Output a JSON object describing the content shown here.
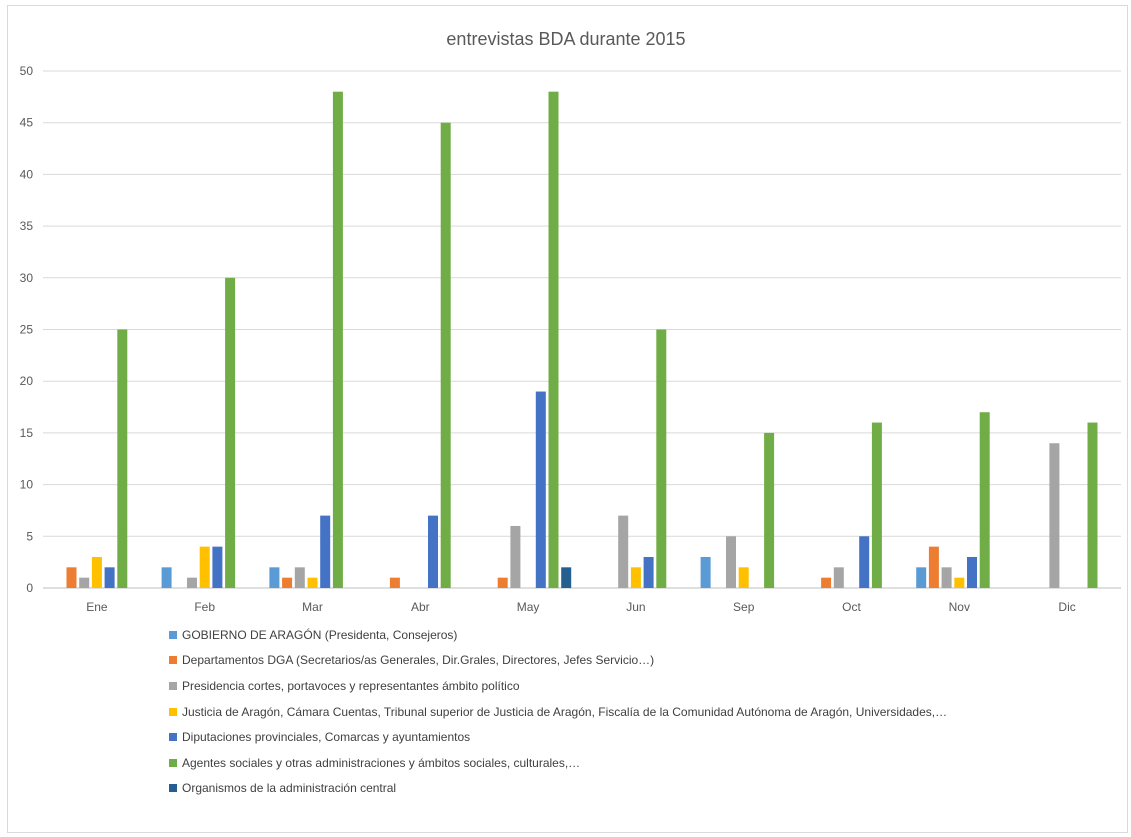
{
  "chart_data": {
    "type": "bar",
    "title": "entrevistas BDA durante 2015",
    "xlabel": "",
    "ylabel": "",
    "ylim": [
      0,
      50
    ],
    "yticks": [
      0,
      5,
      10,
      15,
      20,
      25,
      30,
      35,
      40,
      45,
      50
    ],
    "grid": true,
    "legend_position": "bottom",
    "categories": [
      "Ene",
      "Feb",
      "Mar",
      "Abr",
      "May",
      "Jun",
      "Sep",
      "Oct",
      "Nov",
      "Dic"
    ],
    "series": [
      {
        "name": "GOBIERNO DE ARAGÓN (Presidenta, Consejeros)",
        "color": "#5b9bd5",
        "values": [
          0,
          2,
          2,
          0,
          0,
          0,
          3,
          0,
          2,
          0
        ]
      },
      {
        "name": "Departamentos DGA (Secretarios/as  Generales, Dir.Grales, Directores, Jefes Servicio…)",
        "color": "#ed7d31",
        "values": [
          2,
          0,
          1,
          1,
          1,
          0,
          0,
          1,
          4,
          0
        ]
      },
      {
        "name": "Presidencia cortes, portavoces y representantes ámbito político",
        "color": "#a5a5a5",
        "values": [
          1,
          1,
          2,
          0,
          6,
          7,
          5,
          2,
          2,
          14
        ]
      },
      {
        "name": "Justicia de Aragón, Cámara Cuentas, Tribunal superior de Justicia de Aragón, Fiscalía de la Comunidad Autónoma de Aragón, Universidades,…",
        "color": "#ffc000",
        "values": [
          3,
          4,
          1,
          0,
          0,
          2,
          2,
          0,
          1,
          0
        ]
      },
      {
        "name": "Diputaciones provinciales, Comarcas y ayuntamientos",
        "color": "#4472c4",
        "values": [
          2,
          4,
          7,
          7,
          19,
          3,
          0,
          5,
          3,
          0
        ]
      },
      {
        "name": "Agentes sociales y otras administraciones y ámbitos sociales, culturales,…",
        "color": "#70ad47",
        "values": [
          25,
          30,
          48,
          45,
          48,
          25,
          15,
          16,
          17,
          16
        ]
      },
      {
        "name": "Organismos de la administración central",
        "color": "#255e91",
        "values": [
          0,
          0,
          0,
          0,
          2,
          0,
          0,
          0,
          0,
          0
        ]
      }
    ]
  }
}
